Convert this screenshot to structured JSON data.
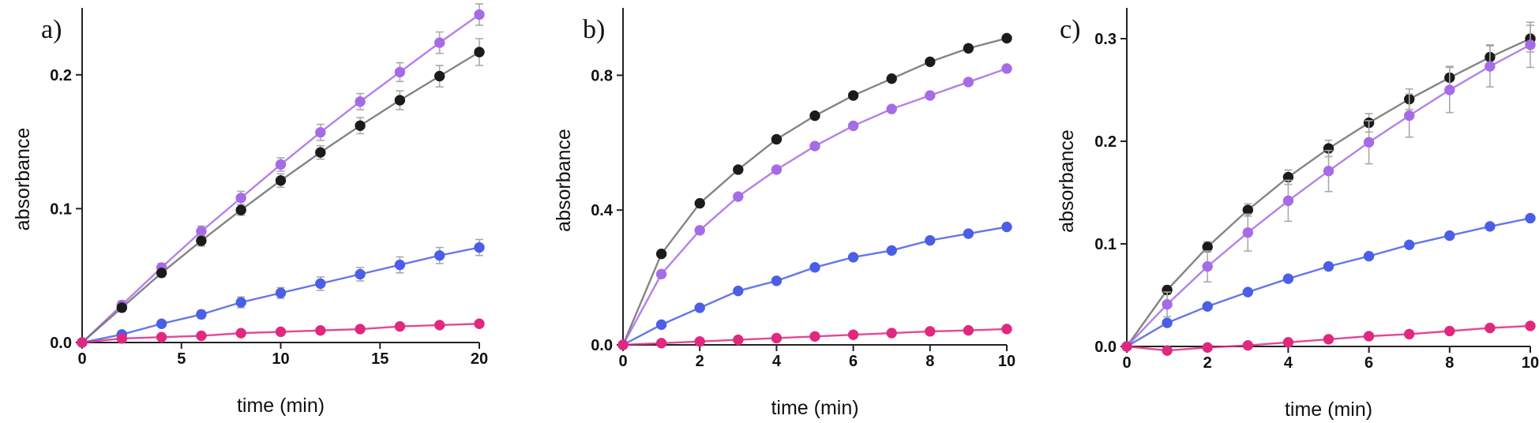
{
  "colors": {
    "black": "#1b1b1b",
    "violet": "#a66be6",
    "blue": "#4a5ee6",
    "magenta": "#e0287f"
  },
  "chart_data": [
    {
      "type": "line",
      "panel_label": "a)",
      "xlabel": "time (min)",
      "ylabel": "absorbance",
      "xlim": [
        0,
        20
      ],
      "ylim": [
        0,
        0.25
      ],
      "xticks": [
        0,
        5,
        10,
        15,
        20
      ],
      "xtick_labels": [
        "0",
        "5",
        "10",
        "15",
        "20"
      ],
      "yticks": [
        0,
        0.1,
        0.2
      ],
      "ytick_labels": [
        "0.0",
        "0.1",
        "0.2"
      ],
      "x": [
        0,
        2,
        4,
        6,
        8,
        10,
        12,
        14,
        16,
        18,
        20
      ],
      "series": [
        {
          "color_key": "violet",
          "values": [
            0,
            0.028,
            0.056,
            0.083,
            0.108,
            0.133,
            0.157,
            0.18,
            0.202,
            0.224,
            0.245
          ],
          "errors": [
            0,
            0.003,
            0.003,
            0.004,
            0.005,
            0.005,
            0.006,
            0.006,
            0.007,
            0.008,
            0.008
          ]
        },
        {
          "color_key": "black",
          "values": [
            0,
            0.026,
            0.052,
            0.076,
            0.099,
            0.121,
            0.142,
            0.162,
            0.181,
            0.199,
            0.217
          ],
          "errors": [
            0,
            0.003,
            0.003,
            0.004,
            0.004,
            0.005,
            0.005,
            0.006,
            0.007,
            0.008,
            0.01
          ]
        },
        {
          "color_key": "blue",
          "values": [
            0,
            0.006,
            0.014,
            0.021,
            0.03,
            0.037,
            0.044,
            0.051,
            0.058,
            0.065,
            0.071
          ],
          "errors": [
            0,
            0.001,
            0.002,
            0.003,
            0.004,
            0.004,
            0.005,
            0.005,
            0.006,
            0.006,
            0.006
          ]
        },
        {
          "color_key": "magenta",
          "values": [
            0,
            0.003,
            0.004,
            0.005,
            0.007,
            0.008,
            0.009,
            0.01,
            0.012,
            0.013,
            0.014
          ],
          "errors": [
            0,
            0.001,
            0.001,
            0.001,
            0.001,
            0.001,
            0.001,
            0.001,
            0.001,
            0.001,
            0.001
          ]
        }
      ]
    },
    {
      "type": "line",
      "panel_label": "b)",
      "xlabel": "time (min)",
      "ylabel": "absorbance",
      "xlim": [
        0,
        10
      ],
      "ylim": [
        0,
        1.0
      ],
      "xticks": [
        0,
        2,
        4,
        6,
        8,
        10
      ],
      "xtick_labels": [
        "0",
        "2",
        "4",
        "6",
        "8",
        "10"
      ],
      "yticks": [
        0,
        0.4,
        0.8
      ],
      "ytick_labels": [
        "0.0",
        "0.4",
        "0.8"
      ],
      "x": [
        0,
        1,
        2,
        3,
        4,
        5,
        6,
        7,
        8,
        9,
        10
      ],
      "series": [
        {
          "color_key": "black",
          "values": [
            0,
            0.27,
            0.42,
            0.52,
            0.61,
            0.68,
            0.74,
            0.79,
            0.84,
            0.88,
            0.91
          ],
          "errors": []
        },
        {
          "color_key": "violet",
          "values": [
            0,
            0.21,
            0.34,
            0.44,
            0.52,
            0.59,
            0.65,
            0.7,
            0.74,
            0.78,
            0.82
          ],
          "errors": []
        },
        {
          "color_key": "blue",
          "values": [
            0,
            0.06,
            0.11,
            0.16,
            0.19,
            0.23,
            0.26,
            0.28,
            0.31,
            0.33,
            0.35
          ],
          "errors": []
        },
        {
          "color_key": "magenta",
          "values": [
            0,
            0.005,
            0.01,
            0.015,
            0.02,
            0.025,
            0.03,
            0.035,
            0.04,
            0.043,
            0.047
          ],
          "errors": []
        }
      ]
    },
    {
      "type": "line",
      "panel_label": "c)",
      "xlabel": "time (min)",
      "ylabel": "absorbance",
      "xlim": [
        0,
        10
      ],
      "ylim": [
        0,
        0.33
      ],
      "xticks": [
        0,
        2,
        4,
        6,
        8,
        10
      ],
      "xtick_labels": [
        "0",
        "2",
        "4",
        "6",
        "8",
        "10"
      ],
      "yticks": [
        0,
        0.1,
        0.2,
        0.3
      ],
      "ytick_labels": [
        "0.0",
        "0.1",
        "0.2",
        "0.3"
      ],
      "x": [
        0,
        1,
        2,
        3,
        4,
        5,
        6,
        7,
        8,
        9,
        10
      ],
      "series": [
        {
          "color_key": "black",
          "values": [
            0,
            0.055,
            0.097,
            0.133,
            0.165,
            0.193,
            0.218,
            0.241,
            0.262,
            0.282,
            0.3
          ],
          "errors": [
            0,
            0.004,
            0.005,
            0.006,
            0.007,
            0.008,
            0.009,
            0.01,
            0.011,
            0.012,
            0.013
          ]
        },
        {
          "color_key": "violet",
          "values": [
            0,
            0.041,
            0.078,
            0.111,
            0.142,
            0.171,
            0.199,
            0.225,
            0.25,
            0.273,
            0.294
          ],
          "errors": [
            0,
            0.012,
            0.015,
            0.018,
            0.02,
            0.02,
            0.021,
            0.021,
            0.022,
            0.02,
            0.022
          ]
        },
        {
          "color_key": "blue",
          "values": [
            0,
            0.023,
            0.039,
            0.053,
            0.066,
            0.078,
            0.088,
            0.099,
            0.108,
            0.117,
            0.125
          ],
          "errors": []
        },
        {
          "color_key": "magenta",
          "values": [
            0,
            -0.004,
            -0.001,
            0.001,
            0.004,
            0.007,
            0.01,
            0.012,
            0.015,
            0.018,
            0.02
          ],
          "errors": []
        }
      ]
    }
  ]
}
